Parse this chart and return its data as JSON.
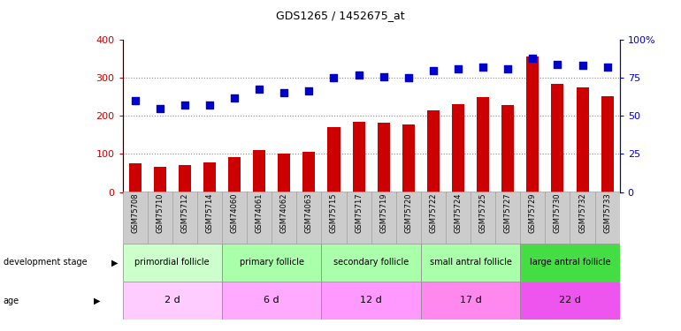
{
  "title": "GDS1265 / 1452675_at",
  "samples": [
    "GSM75708",
    "GSM75710",
    "GSM75712",
    "GSM75714",
    "GSM74060",
    "GSM74061",
    "GSM74062",
    "GSM74063",
    "GSM75715",
    "GSM75717",
    "GSM75719",
    "GSM75720",
    "GSM75722",
    "GSM75724",
    "GSM75725",
    "GSM75727",
    "GSM75729",
    "GSM75730",
    "GSM75732",
    "GSM75733"
  ],
  "counts": [
    75,
    65,
    70,
    78,
    92,
    110,
    100,
    105,
    170,
    185,
    183,
    178,
    215,
    230,
    250,
    228,
    355,
    285,
    275,
    252
  ],
  "percentiles": [
    240,
    218,
    228,
    228,
    248,
    270,
    260,
    265,
    300,
    308,
    303,
    300,
    320,
    324,
    328,
    324,
    352,
    336,
    332,
    328
  ],
  "bar_color": "#cc0000",
  "dot_color": "#0000cc",
  "left_ylim": [
    0,
    400
  ],
  "right_ylim": [
    0,
    100
  ],
  "left_yticks": [
    0,
    100,
    200,
    300,
    400
  ],
  "right_yticks": [
    0,
    25,
    50,
    75,
    100
  ],
  "right_yticklabels": [
    "0",
    "25",
    "50",
    "75",
    "100%"
  ],
  "grid_vals": [
    100,
    200,
    300
  ],
  "grid_color": "#888888",
  "tick_label_color_left": "#cc0000",
  "tick_label_color_right": "#0000cc",
  "bg_color": "#ffffff",
  "stage_groups": [
    {
      "label": "primordial follicle",
      "start": 0,
      "end": 4,
      "color": "#ccffcc"
    },
    {
      "label": "primary follicle",
      "start": 4,
      "end": 8,
      "color": "#aaffaa"
    },
    {
      "label": "secondary follicle",
      "start": 8,
      "end": 12,
      "color": "#aaffaa"
    },
    {
      "label": "small antral follicle",
      "start": 12,
      "end": 16,
      "color": "#aaffaa"
    },
    {
      "label": "large antral follicle",
      "start": 16,
      "end": 20,
      "color": "#44dd44"
    }
  ],
  "age_groups": [
    {
      "label": "2 d",
      "start": 0,
      "end": 4,
      "color": "#ffccff"
    },
    {
      "label": "6 d",
      "start": 4,
      "end": 8,
      "color": "#ffaaff"
    },
    {
      "label": "12 d",
      "start": 8,
      "end": 12,
      "color": "#ff99ff"
    },
    {
      "label": "17 d",
      "start": 12,
      "end": 16,
      "color": "#ff88ee"
    },
    {
      "label": "22 d",
      "start": 16,
      "end": 20,
      "color": "#ee55ee"
    }
  ],
  "xtick_bg": "#dddddd"
}
